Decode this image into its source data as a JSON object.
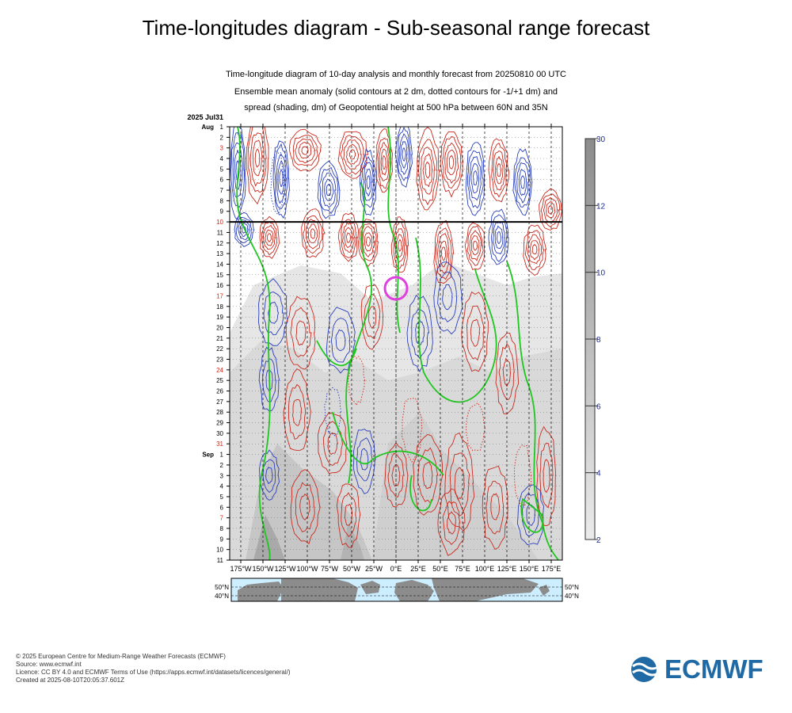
{
  "header": {
    "title": "Time-longitudes diagram - Sub-seasonal range forecast"
  },
  "chart_data": {
    "type": "heatmap",
    "subtitle_lines": [
      "Time-longitude diagram of 10-day analysis and monthly forecast from 20250810 00 UTC",
      "Ensemble mean anomaly (solid contours at 2 dm, dotted contours for -1/+1 dm) and",
      "spread (shading, dm) of Geopotential height at 500 hPa between 60N and 35N"
    ],
    "corner_label": "2025 Jul31",
    "x_ticks": [
      "175°W",
      "150°W",
      "125°W",
      "100°W",
      "75°W",
      "50°W",
      "25°W",
      "0°E",
      "25°E",
      "50°E",
      "75°E",
      "100°E",
      "125°E",
      "150°E",
      "175°E"
    ],
    "y_ticks": [
      {
        "month": "Aug",
        "day": "1"
      },
      {
        "day": "2"
      },
      {
        "day": "3",
        "weekend": true
      },
      {
        "day": "4"
      },
      {
        "day": "5"
      },
      {
        "day": "6"
      },
      {
        "day": "7"
      },
      {
        "day": "8"
      },
      {
        "day": "9"
      },
      {
        "day": "10",
        "weekend": true
      },
      {
        "day": "11"
      },
      {
        "day": "12"
      },
      {
        "day": "13"
      },
      {
        "day": "14"
      },
      {
        "day": "15"
      },
      {
        "day": "16"
      },
      {
        "day": "17",
        "weekend": true
      },
      {
        "day": "18"
      },
      {
        "day": "19"
      },
      {
        "day": "20"
      },
      {
        "day": "21"
      },
      {
        "day": "22"
      },
      {
        "day": "23"
      },
      {
        "day": "24",
        "weekend": true
      },
      {
        "day": "25"
      },
      {
        "day": "26"
      },
      {
        "day": "27"
      },
      {
        "day": "28"
      },
      {
        "day": "29"
      },
      {
        "day": "30"
      },
      {
        "day": "31",
        "weekend": true
      },
      {
        "month": "Sep",
        "day": "1"
      },
      {
        "day": "2"
      },
      {
        "day": "3"
      },
      {
        "day": "4"
      },
      {
        "day": "5"
      },
      {
        "day": "6"
      },
      {
        "day": "7",
        "weekend": true
      },
      {
        "day": "8"
      },
      {
        "day": "9"
      },
      {
        "day": "10"
      },
      {
        "day": "11"
      }
    ],
    "analysis_end_day": "10",
    "colorbar": {
      "ticks": [
        "30",
        "12",
        "10",
        "8",
        "6",
        "4",
        "2"
      ]
    },
    "map_strip": {
      "left_labels": [
        "50°N",
        "40°N"
      ],
      "right_labels": [
        "50°N",
        "40°N"
      ]
    },
    "colors": {
      "positive": "#cc2a1e",
      "negative": "#2a3fbf",
      "zero": "#1ec81e",
      "marker": "#e040e0",
      "land": "#8c8c8c",
      "sea": "#cceeff",
      "weekend": "#cc2a1e"
    }
  },
  "footer": {
    "lines": [
      "© 2025 European Centre for Medium-Range Weather Forecasts (ECMWF)",
      "Source: www.ecmwf.int",
      "Licence: CC BY 4.0 and ECMWF Terms of Use (https://apps.ecmwf.int/datasets/licences/general/)",
      "Created at 2025-08-10T20:05:37.601Z"
    ]
  },
  "logo": {
    "text": "ECMWF",
    "icon": "ecmwf-logo-icon"
  }
}
